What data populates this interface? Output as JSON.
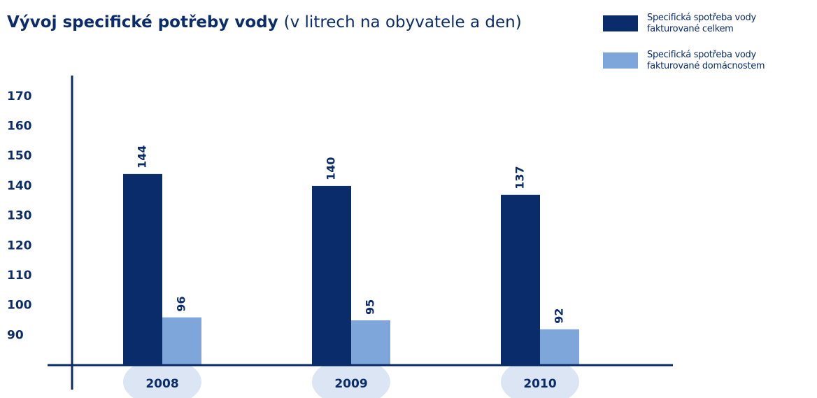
{
  "chart_data": {
    "type": "bar",
    "title": "Vývoj specifické potřeby vody",
    "subtitle": "(v litrech na obyvatele a den)",
    "categories": [
      "2008",
      "2009",
      "2010"
    ],
    "series": [
      {
        "name": "Specifická spotřeba vody fakturované celkem",
        "color": "#0b2c6b",
        "values": [
          144,
          140,
          137
        ]
      },
      {
        "name": "Specifická spotřeba vody fakturované domácnostem",
        "color": "#7ea6da",
        "values": [
          96,
          95,
          92
        ]
      }
    ],
    "ylim": [
      80,
      177
    ],
    "yticks": [
      90,
      100,
      110,
      120,
      130,
      140,
      150,
      160,
      170
    ]
  }
}
